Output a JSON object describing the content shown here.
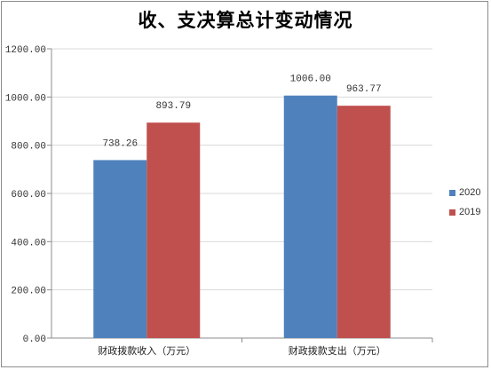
{
  "chart_data": {
    "type": "bar",
    "title": "收、支决算总计变动情况",
    "categories": [
      "财政拨款收入（万元）",
      "财政拨款支出（万元）"
    ],
    "series": [
      {
        "name": "2020",
        "values": [
          738.26,
          1006.0
        ],
        "labels": [
          "738.26",
          "1006.00"
        ],
        "color": "#4f81bd"
      },
      {
        "name": "2019",
        "values": [
          893.79,
          963.77
        ],
        "labels": [
          "893.79",
          "963.77"
        ],
        "color": "#c0504d"
      }
    ],
    "ylim": [
      0,
      1200
    ],
    "yticks": [
      0,
      200,
      400,
      600,
      800,
      1000,
      1200
    ],
    "ytick_labels": [
      "0.00",
      "200.00",
      "400.00",
      "600.00",
      "800.00",
      "1000.00",
      "1200.00"
    ],
    "xlabel": "",
    "ylabel": "",
    "grid": true,
    "legend": "right"
  }
}
